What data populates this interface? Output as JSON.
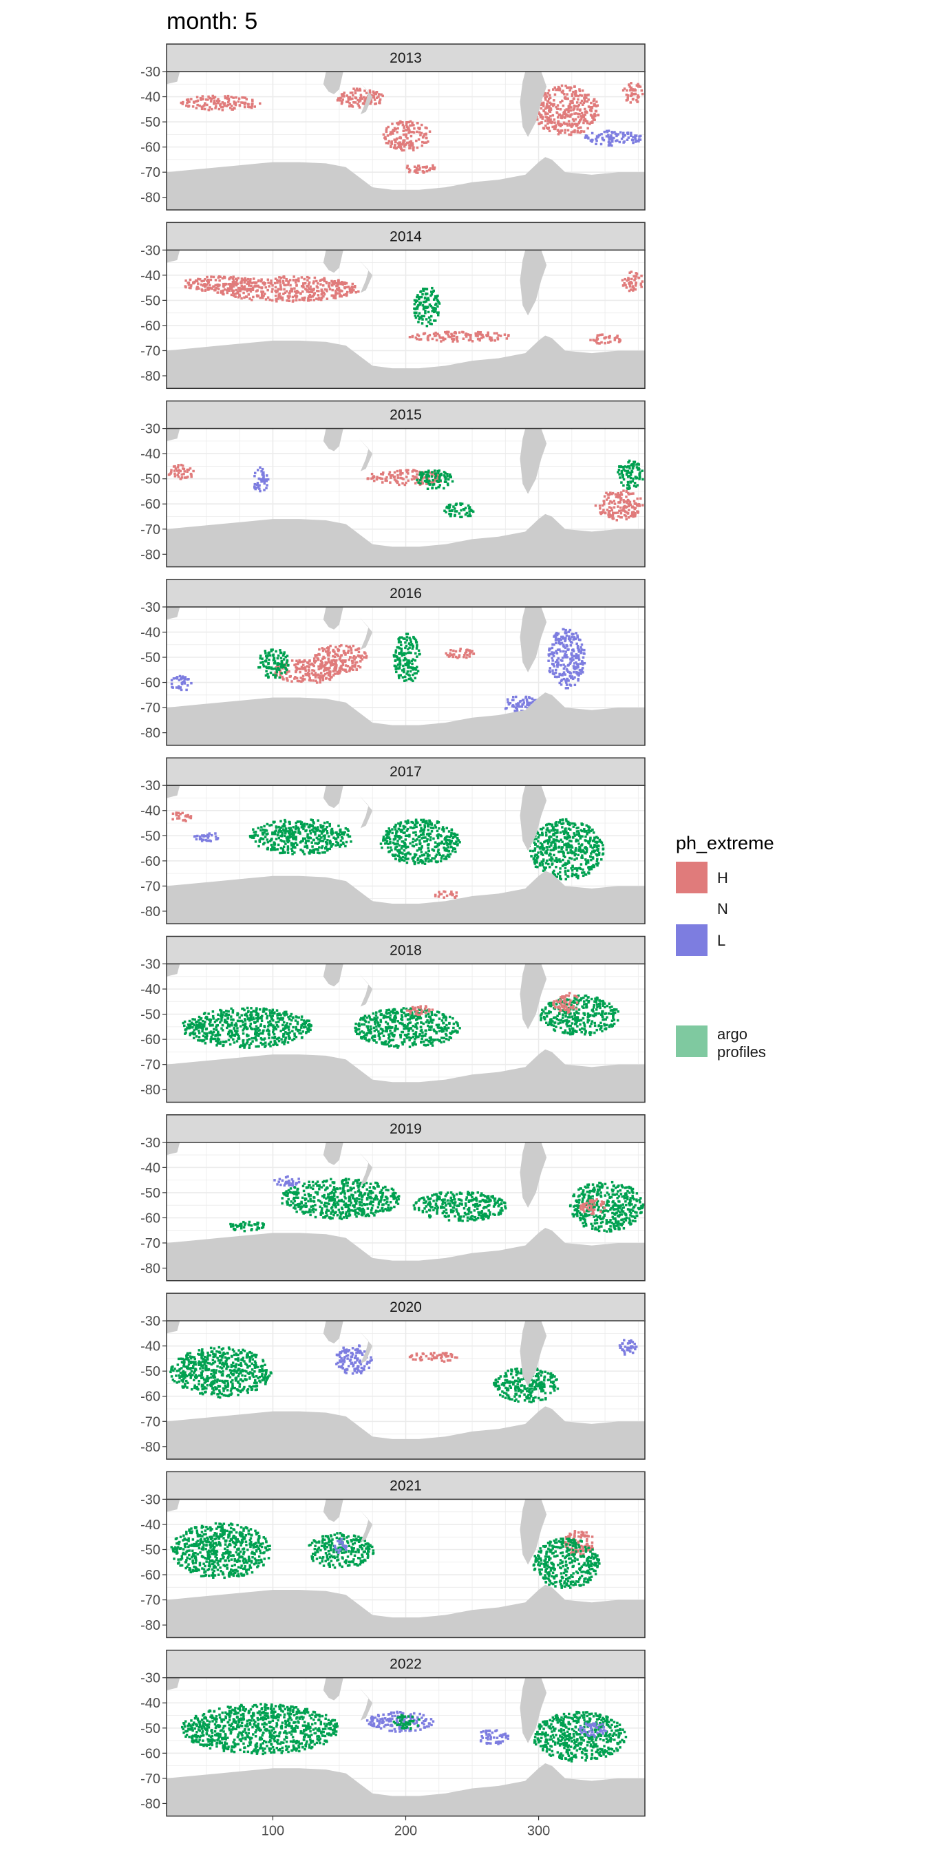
{
  "figure": {
    "title": "month: 5",
    "colors": {
      "H": "#e07b7b",
      "N": "#ffffff",
      "L": "#7d7de0",
      "argo": "#00a050",
      "land": "#cccccc",
      "strip": "#d9d9d9",
      "grid": "#ebebeb",
      "border": "#333333"
    }
  },
  "legend": {
    "title": "ph_extreme",
    "items": [
      {
        "key": "H",
        "label": "H",
        "color": "#e07b7b"
      },
      {
        "key": "N",
        "label": "N",
        "color": "#ffffff"
      },
      {
        "key": "L",
        "label": "L",
        "color": "#7d7de0"
      }
    ],
    "argo": {
      "label_line1": "argo",
      "label_line2": "profiles",
      "color": "#7fc9a0"
    }
  },
  "chart_data": {
    "type": "heatmap",
    "description_of_layout": "faceted map panels, one per year, lon (x) vs lat (y)",
    "xlim": [
      20,
      380
    ],
    "ylim": [
      -85,
      -30
    ],
    "x_ticks": [
      100,
      200,
      300
    ],
    "x_tick_labels": [
      "100",
      "200",
      "300"
    ],
    "y_ticks": [
      -30,
      -40,
      -50,
      -60,
      -70,
      -80
    ],
    "y_tick_labels": [
      "-30",
      "-40",
      "-50",
      "-60",
      "-70",
      "-80"
    ],
    "land": {
      "antarctica_lat": [
        [
          20,
          -70
        ],
        [
          40,
          -69
        ],
        [
          60,
          -68
        ],
        [
          80,
          -67
        ],
        [
          100,
          -66
        ],
        [
          120,
          -66
        ],
        [
          140,
          -66.5
        ],
        [
          155,
          -68
        ],
        [
          165,
          -72
        ],
        [
          175,
          -76
        ],
        [
          190,
          -77
        ],
        [
          210,
          -77
        ],
        [
          230,
          -76
        ],
        [
          250,
          -74
        ],
        [
          270,
          -73
        ],
        [
          290,
          -71
        ],
        [
          300,
          -66
        ],
        [
          305,
          -64
        ],
        [
          310,
          -65
        ],
        [
          320,
          -70
        ],
        [
          340,
          -71
        ],
        [
          360,
          -70
        ],
        [
          380,
          -70
        ]
      ],
      "south_america_tip": [
        [
          290,
          -30
        ],
        [
          302,
          -30
        ],
        [
          306,
          -36
        ],
        [
          302,
          -42
        ],
        [
          298,
          -50
        ],
        [
          292,
          -56
        ],
        [
          288,
          -52
        ],
        [
          286,
          -42
        ],
        [
          288,
          -34
        ]
      ],
      "new_zealand": [
        [
          165,
          -34
        ],
        [
          175,
          -40
        ],
        [
          170,
          -46
        ],
        [
          166,
          -47
        ],
        [
          170,
          -42
        ],
        [
          172,
          -38
        ]
      ],
      "australia_tip": [
        [
          140,
          -30
        ],
        [
          153,
          -30
        ],
        [
          150,
          -37
        ],
        [
          146,
          -39
        ],
        [
          142,
          -38
        ],
        [
          138,
          -35
        ]
      ],
      "africa_tip": [
        [
          20,
          -30
        ],
        [
          30,
          -30
        ],
        [
          28,
          -34
        ],
        [
          20,
          -35
        ]
      ]
    },
    "panels": [
      {
        "year": "2013",
        "blobs": [
          {
            "cls": "H",
            "lon": 200,
            "lat": -55,
            "rx": 18,
            "ry": 6
          },
          {
            "cls": "H",
            "lon": 210,
            "lat": -68,
            "rx": 12,
            "ry": 2
          },
          {
            "cls": "H",
            "lon": 60,
            "lat": -42,
            "rx": 30,
            "ry": 3
          },
          {
            "cls": "H",
            "lon": 165,
            "lat": -40,
            "rx": 18,
            "ry": 4
          },
          {
            "cls": "H",
            "lon": 320,
            "lat": -45,
            "rx": 25,
            "ry": 10
          },
          {
            "cls": "H",
            "lon": 370,
            "lat": -38,
            "rx": 8,
            "ry": 4
          },
          {
            "cls": "L",
            "lon": 355,
            "lat": -56,
            "rx": 22,
            "ry": 3
          }
        ]
      },
      {
        "year": "2014",
        "blobs": [
          {
            "cls": "H",
            "lon": 110,
            "lat": -45,
            "rx": 55,
            "ry": 5
          },
          {
            "cls": "H",
            "lon": 60,
            "lat": -43,
            "rx": 30,
            "ry": 3
          },
          {
            "cls": "G",
            "lon": 215,
            "lat": -52,
            "rx": 10,
            "ry": 8
          },
          {
            "cls": "H",
            "lon": 240,
            "lat": -64,
            "rx": 40,
            "ry": 2
          },
          {
            "cls": "H",
            "lon": 350,
            "lat": -65,
            "rx": 12,
            "ry": 2
          },
          {
            "cls": "H",
            "lon": 370,
            "lat": -42,
            "rx": 8,
            "ry": 4
          }
        ]
      },
      {
        "year": "2015",
        "blobs": [
          {
            "cls": "H",
            "lon": 200,
            "lat": -49,
            "rx": 30,
            "ry": 3
          },
          {
            "cls": "G",
            "lon": 220,
            "lat": -50,
            "rx": 15,
            "ry": 4
          },
          {
            "cls": "L",
            "lon": 90,
            "lat": -50,
            "rx": 6,
            "ry": 5
          },
          {
            "cls": "H",
            "lon": 360,
            "lat": -60,
            "rx": 18,
            "ry": 6
          },
          {
            "cls": "G",
            "lon": 368,
            "lat": -48,
            "rx": 10,
            "ry": 6
          },
          {
            "cls": "H",
            "lon": 30,
            "lat": -47,
            "rx": 10,
            "ry": 3
          },
          {
            "cls": "G",
            "lon": 240,
            "lat": -62,
            "rx": 12,
            "ry": 3
          }
        ]
      },
      {
        "year": "2016",
        "blobs": [
          {
            "cls": "H",
            "lon": 125,
            "lat": -55,
            "rx": 25,
            "ry": 5
          },
          {
            "cls": "H",
            "lon": 150,
            "lat": -50,
            "rx": 20,
            "ry": 6
          },
          {
            "cls": "G",
            "lon": 100,
            "lat": -52,
            "rx": 12,
            "ry": 6
          },
          {
            "cls": "L",
            "lon": 320,
            "lat": -50,
            "rx": 14,
            "ry": 12
          },
          {
            "cls": "L",
            "lon": 285,
            "lat": -68,
            "rx": 15,
            "ry": 3
          },
          {
            "cls": "L",
            "lon": 30,
            "lat": -60,
            "rx": 8,
            "ry": 3
          },
          {
            "cls": "G",
            "lon": 200,
            "lat": -50,
            "rx": 10,
            "ry": 10
          },
          {
            "cls": "H",
            "lon": 240,
            "lat": -48,
            "rx": 12,
            "ry": 2
          }
        ]
      },
      {
        "year": "2017",
        "blobs": [
          {
            "cls": "G",
            "lon": 120,
            "lat": -50,
            "rx": 40,
            "ry": 7
          },
          {
            "cls": "G",
            "lon": 210,
            "lat": -52,
            "rx": 30,
            "ry": 9
          },
          {
            "cls": "G",
            "lon": 320,
            "lat": -55,
            "rx": 28,
            "ry": 12
          },
          {
            "cls": "H",
            "lon": 30,
            "lat": -42,
            "rx": 8,
            "ry": 2
          },
          {
            "cls": "L",
            "lon": 50,
            "lat": -50,
            "rx": 10,
            "ry": 2
          },
          {
            "cls": "H",
            "lon": 230,
            "lat": -73,
            "rx": 10,
            "ry": 1.5
          }
        ]
      },
      {
        "year": "2018",
        "blobs": [
          {
            "cls": "G",
            "lon": 80,
            "lat": -55,
            "rx": 50,
            "ry": 8
          },
          {
            "cls": "G",
            "lon": 200,
            "lat": -55,
            "rx": 40,
            "ry": 8
          },
          {
            "cls": "G",
            "lon": 330,
            "lat": -50,
            "rx": 30,
            "ry": 8
          },
          {
            "cls": "H",
            "lon": 320,
            "lat": -45,
            "rx": 10,
            "ry": 4
          },
          {
            "cls": "H",
            "lon": 210,
            "lat": -48,
            "rx": 10,
            "ry": 2
          }
        ]
      },
      {
        "year": "2019",
        "blobs": [
          {
            "cls": "G",
            "lon": 350,
            "lat": -55,
            "rx": 28,
            "ry": 10
          },
          {
            "cls": "G",
            "lon": 150,
            "lat": -52,
            "rx": 45,
            "ry": 8
          },
          {
            "cls": "G",
            "lon": 240,
            "lat": -55,
            "rx": 35,
            "ry": 6
          },
          {
            "cls": "L",
            "lon": 110,
            "lat": -45,
            "rx": 10,
            "ry": 2
          },
          {
            "cls": "H",
            "lon": 340,
            "lat": -55,
            "rx": 10,
            "ry": 3
          },
          {
            "cls": "G",
            "lon": 80,
            "lat": -63,
            "rx": 15,
            "ry": 2
          }
        ]
      },
      {
        "year": "2020",
        "blobs": [
          {
            "cls": "L",
            "lon": 160,
            "lat": -45,
            "rx": 14,
            "ry": 6
          },
          {
            "cls": "G",
            "lon": 60,
            "lat": -50,
            "rx": 38,
            "ry": 10
          },
          {
            "cls": "H",
            "lon": 220,
            "lat": -44,
            "rx": 18,
            "ry": 2
          },
          {
            "cls": "G",
            "lon": 290,
            "lat": -55,
            "rx": 25,
            "ry": 7
          },
          {
            "cls": "L",
            "lon": 365,
            "lat": -40,
            "rx": 8,
            "ry": 3
          }
        ]
      },
      {
        "year": "2021",
        "blobs": [
          {
            "cls": "G",
            "lon": 60,
            "lat": -50,
            "rx": 38,
            "ry": 11
          },
          {
            "cls": "H",
            "lon": 330,
            "lat": -47,
            "rx": 12,
            "ry": 5
          },
          {
            "cls": "G",
            "lon": 320,
            "lat": -55,
            "rx": 25,
            "ry": 10
          },
          {
            "cls": "G",
            "lon": 150,
            "lat": -50,
            "rx": 25,
            "ry": 7
          },
          {
            "cls": "L",
            "lon": 150,
            "lat": -48,
            "rx": 5,
            "ry": 3
          }
        ]
      },
      {
        "year": "2022",
        "blobs": [
          {
            "cls": "L",
            "lon": 195,
            "lat": -47,
            "rx": 25,
            "ry": 4
          },
          {
            "cls": "L",
            "lon": 265,
            "lat": -53,
            "rx": 12,
            "ry": 3
          },
          {
            "cls": "G",
            "lon": 90,
            "lat": -50,
            "rx": 60,
            "ry": 10
          },
          {
            "cls": "G",
            "lon": 330,
            "lat": -53,
            "rx": 35,
            "ry": 10
          },
          {
            "cls": "G",
            "lon": 200,
            "lat": -47,
            "rx": 10,
            "ry": 3
          },
          {
            "cls": "L",
            "lon": 340,
            "lat": -50,
            "rx": 10,
            "ry": 3
          }
        ]
      }
    ]
  }
}
